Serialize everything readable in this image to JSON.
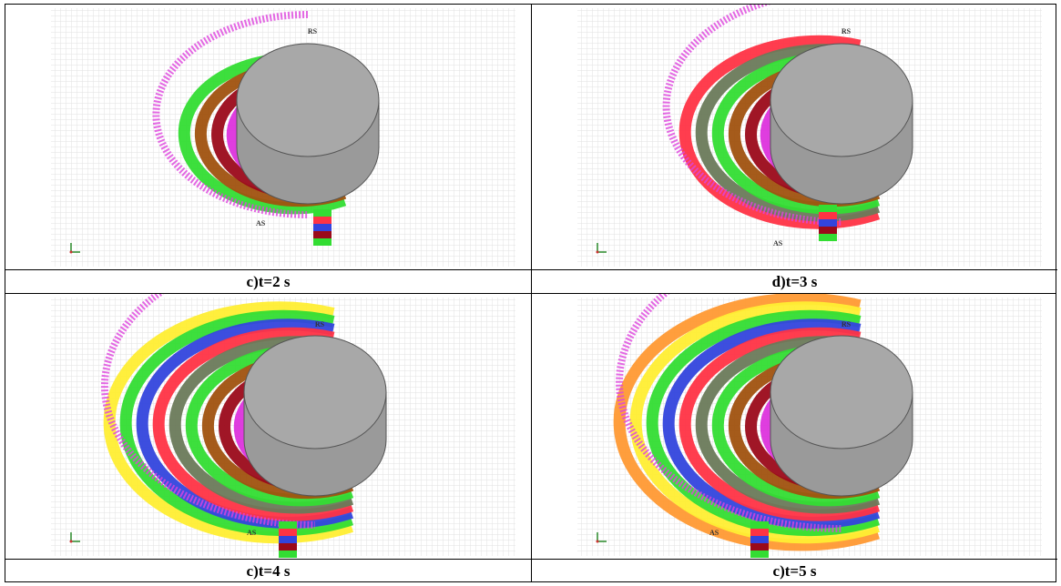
{
  "panels": [
    {
      "rs": "RS",
      "as": "AS",
      "caption": "c)t=2 s"
    },
    {
      "rs": "RS",
      "as": "AS",
      "caption": "d)t=3 s"
    },
    {
      "rs": "RS",
      "as": "AS",
      "caption": "c)t=4 s"
    },
    {
      "rs": "RS",
      "as": "AS",
      "caption": "c)t=5 s"
    }
  ]
}
